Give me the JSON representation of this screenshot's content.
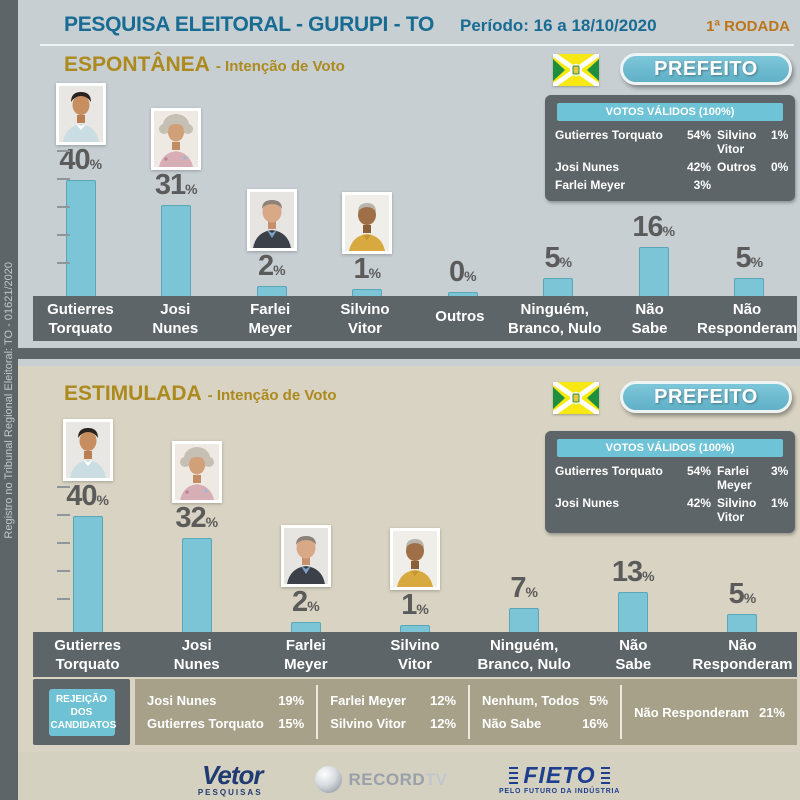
{
  "percent_sign": "%",
  "sidebar": {
    "registration": "Registro no Tribunal Regional Eleitoral: TO - 01621/2020"
  },
  "header": {
    "title": "PESQUISA ELEITORAL - GURUPI - TO",
    "period": "Período: 16 a 18/10/2020",
    "round": "1ª RODADA"
  },
  "badge": "PREFEITO",
  "espontanea": {
    "title": "ESPONTÂNEA",
    "subtitle": "- Intenção de Voto",
    "valid_votes": {
      "title": "VOTOS VÁLIDOS (100%)",
      "entries": [
        {
          "name": "Gutierres Torquato",
          "pct": "54%"
        },
        {
          "name": "Silvino Vitor",
          "pct": "1%"
        },
        {
          "name": "Josi Nunes",
          "pct": "42%"
        },
        {
          "name": "Outros",
          "pct": "0%"
        },
        {
          "name": "Farlei Meyer",
          "pct": "3%"
        }
      ]
    },
    "columns": [
      {
        "l1": "Gutierres",
        "l2": "Torquato",
        "pct": "40"
      },
      {
        "l1": "Josi",
        "l2": "Nunes",
        "pct": "31"
      },
      {
        "l1": "Farlei",
        "l2": "Meyer",
        "pct": "2"
      },
      {
        "l1": "Silvino",
        "l2": "Vitor",
        "pct": "1"
      },
      {
        "l1": "Outros",
        "l2": "",
        "pct": "0"
      },
      {
        "l1": "Ninguém,",
        "l2": "Branco, Nulo",
        "pct": "5"
      },
      {
        "l1": "Não",
        "l2": "Sabe",
        "pct": "16"
      },
      {
        "l1": "Não",
        "l2": "Responderam",
        "pct": "5"
      }
    ]
  },
  "estimulada": {
    "title": "ESTIMULADA",
    "subtitle": "- Intenção de Voto",
    "valid_votes": {
      "title": "VOTOS VÁLIDOS (100%)",
      "entries": [
        {
          "name": "Gutierres Torquato",
          "pct": "54%"
        },
        {
          "name": "Farlei Meyer",
          "pct": "3%"
        },
        {
          "name": "Josi Nunes",
          "pct": "42%"
        },
        {
          "name": "Silvino Vitor",
          "pct": "1%"
        }
      ]
    },
    "columns": [
      {
        "l1": "Gutierres",
        "l2": "Torquato",
        "pct": "40"
      },
      {
        "l1": "Josi",
        "l2": "Nunes",
        "pct": "32"
      },
      {
        "l1": "Farlei",
        "l2": "Meyer",
        "pct": "2"
      },
      {
        "l1": "Silvino",
        "l2": "Vitor",
        "pct": "1"
      },
      {
        "l1": "Ninguém,",
        "l2": "Branco, Nulo",
        "pct": "7"
      },
      {
        "l1": "Não",
        "l2": "Sabe",
        "pct": "13"
      },
      {
        "l1": "Não",
        "l2": "Responderam",
        "pct": "5"
      }
    ]
  },
  "rejeicao": {
    "l1": "REJEIÇÃO",
    "l2": "DOS",
    "l3": "CANDIDATOS",
    "groups": [
      {
        "rows": [
          {
            "name": "Josi Nunes",
            "pct": "19%"
          },
          {
            "name": "Gutierres Torquato",
            "pct": "15%"
          }
        ]
      },
      {
        "rows": [
          {
            "name": "Farlei Meyer",
            "pct": "12%"
          },
          {
            "name": "Silvino Vitor",
            "pct": "12%"
          }
        ]
      },
      {
        "rows": [
          {
            "name": "Nenhum, Todos",
            "pct": "5%"
          },
          {
            "name": "Não Sabe",
            "pct": "16%"
          }
        ]
      },
      {
        "rows": [
          {
            "name": "Não Responderam",
            "pct": "21%"
          }
        ]
      }
    ]
  },
  "footer": {
    "vetor_name": "Vetor",
    "vetor_sub": "PESQUISAS",
    "record_name": "RECORD",
    "record_suffix": "TV",
    "fieto_name": "FIETO",
    "fieto_sub": "PELO FUTURO DA INDÚSTRIA"
  },
  "colors": {
    "bar": "#7cc5d6",
    "panel_dark": "#5d6569",
    "header_blue": "#186b92",
    "gold": "#ac8a1e",
    "round_orange": "#bd7519",
    "bg_top": "#c8cfd3",
    "bg_bottom": "#d8d3c2",
    "rejection_strip": "#a7a18a"
  },
  "chart_data": [
    {
      "type": "bar",
      "title": "ESPONTÂNEA - Intenção de Voto",
      "categories": [
        "Gutierres Torquato",
        "Josi Nunes",
        "Farlei Meyer",
        "Silvino Vitor",
        "Outros",
        "Ninguém, Branco, Nulo",
        "Não Sabe",
        "Não Responderam"
      ],
      "values": [
        40,
        31,
        2,
        1,
        0,
        5,
        16,
        5
      ],
      "unit": "%",
      "ylim": [
        0,
        50
      ],
      "grid": false,
      "legend": "none",
      "valid_votes": {
        "Gutierres Torquato": 54,
        "Josi Nunes": 42,
        "Farlei Meyer": 3,
        "Silvino Vitor": 1,
        "Outros": 0
      }
    },
    {
      "type": "bar",
      "title": "ESTIMULADA - Intenção de Voto",
      "categories": [
        "Gutierres Torquato",
        "Josi Nunes",
        "Farlei Meyer",
        "Silvino Vitor",
        "Ninguém, Branco, Nulo",
        "Não Sabe",
        "Não Responderam"
      ],
      "values": [
        40,
        32,
        2,
        1,
        7,
        13,
        5
      ],
      "unit": "%",
      "ylim": [
        0,
        50
      ],
      "grid": false,
      "legend": "none",
      "valid_votes": {
        "Gutierres Torquato": 54,
        "Josi Nunes": 42,
        "Farlei Meyer": 3,
        "Silvino Vitor": 1
      },
      "rejection": {
        "Josi Nunes": 19,
        "Gutierres Torquato": 15,
        "Farlei Meyer": 12,
        "Silvino Vitor": 12,
        "Nenhum, Todos": 5,
        "Não Sabe": 16,
        "Não Responderam": 21
      }
    }
  ]
}
